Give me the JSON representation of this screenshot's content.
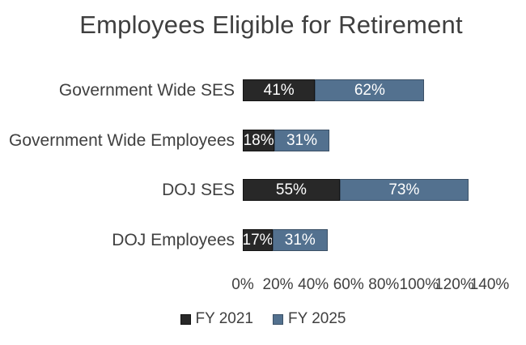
{
  "chart_data": {
    "type": "bar",
    "subtype": "horizontal-stacked",
    "title": "Employees Eligible for Retirement",
    "categories": [
      "Government Wide SES",
      "Government Wide Employees",
      "DOJ SES",
      "DOJ Employees"
    ],
    "series": [
      {
        "name": "FY 2021",
        "color": "#282828",
        "border_color": "#141414",
        "values": [
          41,
          18,
          55,
          17
        ]
      },
      {
        "name": "FY 2025",
        "color": "#53718f",
        "border_color": "#3c5167",
        "values": [
          62,
          31,
          73,
          31
        ]
      }
    ],
    "value_suffix": "%",
    "value_label_color": "#ffffff",
    "x_ticks": [
      "0%",
      "20%",
      "40%",
      "60%",
      "80%",
      "100%",
      "120%",
      "140%"
    ],
    "x_tick_values": [
      0,
      20,
      40,
      60,
      80,
      100,
      120,
      140
    ],
    "xlim": [
      0,
      140
    ],
    "grid": false,
    "legend_position": "bottom",
    "text_color": "#404040",
    "background": "#ffffff"
  }
}
